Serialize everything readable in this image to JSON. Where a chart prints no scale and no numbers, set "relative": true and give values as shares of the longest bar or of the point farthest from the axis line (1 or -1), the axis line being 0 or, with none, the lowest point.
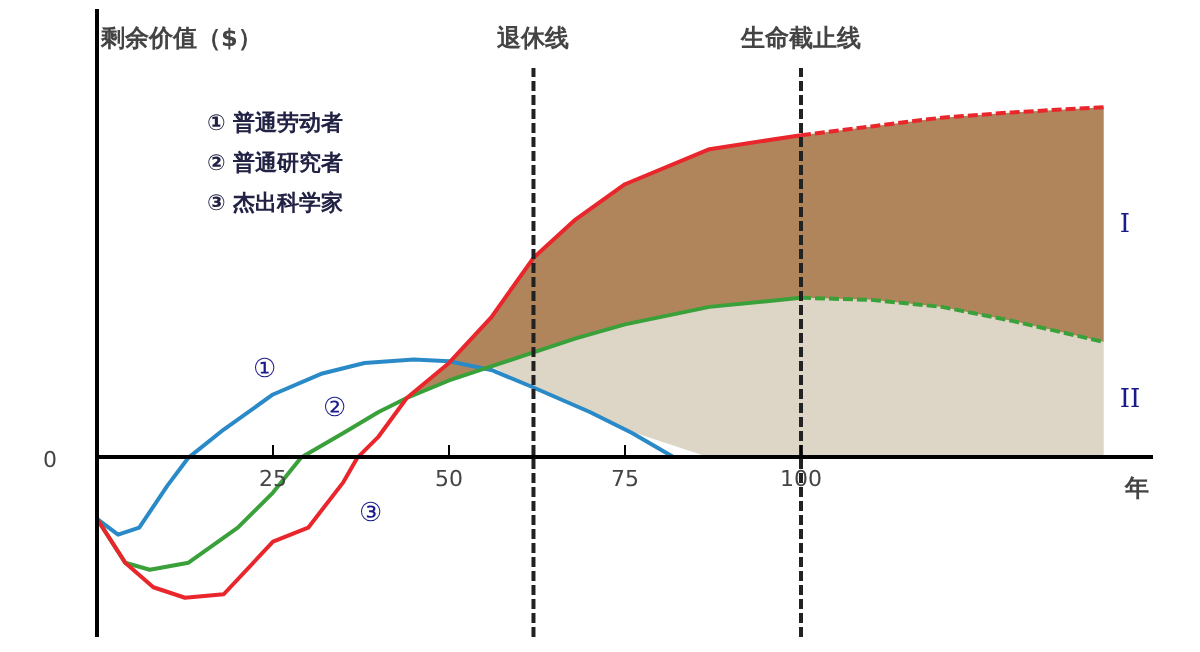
{
  "chart_data": {
    "type": "line",
    "relative": true,
    "ylabel": "剩余价值（$）",
    "xlabel": "年",
    "xlim": [
      0,
      150
    ],
    "xticks": [
      25,
      50,
      75,
      100
    ],
    "grid": false,
    "series": [
      {
        "name": "①",
        "color": "#2a8ac8",
        "x": [
          0,
          3,
          6,
          10,
          13,
          18,
          25,
          32,
          38,
          45,
          50,
          56,
          62,
          70,
          76,
          82
        ],
        "values": [
          -0.175,
          -0.22,
          -0.2,
          -0.08,
          0,
          0.08,
          0.18,
          0.24,
          0.27,
          0.28,
          0.275,
          0.25,
          0.2,
          0.13,
          0.07,
          0
        ]
      },
      {
        "name": "②",
        "color": "#3aa03a",
        "line_style": "solid",
        "x": [
          0,
          4,
          7.5,
          13,
          20,
          25,
          29,
          35,
          40,
          44,
          50,
          56,
          62,
          68,
          75,
          87,
          100
        ],
        "values": [
          -0.175,
          -0.3,
          -0.32,
          -0.3,
          -0.2,
          -0.1,
          0,
          0.07,
          0.13,
          0.17,
          0.22,
          0.26,
          0.3,
          0.34,
          0.38,
          0.43,
          0.456
        ],
        "lower": [
          null,
          null,
          null,
          null,
          null,
          null,
          null,
          null,
          null,
          null,
          null,
          0.26,
          0.2,
          0.15,
          0.08,
          0,
          0
        ],
        "upper": [
          null,
          null,
          null,
          null,
          null,
          null,
          null,
          null,
          null,
          null,
          null,
          0.26,
          0.3,
          0.34,
          0.38,
          0.43,
          0.456
        ]
      },
      {
        "color": "#3aa03a",
        "line_style": "dashed",
        "x": [
          100,
          110,
          120,
          130,
          143
        ],
        "values": [
          0.456,
          0.45,
          0.43,
          0.39,
          0.33
        ],
        "lower": [
          0,
          0,
          0,
          0,
          0
        ],
        "upper": [
          0.456,
          0.45,
          0.43,
          0.39,
          0.33
        ]
      },
      {
        "name": "③",
        "color": "#e8262b",
        "line_style": "solid",
        "x": [
          0,
          4,
          8,
          12.5,
          18,
          25,
          30,
          35,
          37,
          40,
          44,
          50,
          56,
          62,
          68,
          75,
          87,
          100
        ],
        "values": [
          -0.175,
          -0.3,
          -0.37,
          -0.4,
          -0.39,
          -0.24,
          -0.2,
          -0.07,
          0,
          0.06,
          0.17,
          0.27,
          0.4,
          0.57,
          0.68,
          0.78,
          0.88,
          0.92
        ],
        "lower": [
          null,
          null,
          null,
          null,
          null,
          null,
          null,
          null,
          null,
          null,
          0.17,
          0.22,
          0.26,
          0.3,
          0.34,
          0.38,
          0.43,
          0.456
        ],
        "upper": [
          null,
          null,
          null,
          null,
          null,
          null,
          null,
          null,
          null,
          null,
          0.17,
          0.27,
          0.4,
          0.57,
          0.68,
          0.78,
          0.88,
          0.92
        ]
      },
      {
        "color": "#e8262b",
        "line_style": "dashed",
        "x": [
          100,
          110,
          120,
          130,
          143
        ],
        "values": [
          0.92,
          0.945,
          0.97,
          0.985,
          1.0
        ],
        "lower": [
          0.456,
          0.45,
          0.43,
          0.39,
          0.33
        ],
        "upper": [
          0.92,
          0.945,
          0.97,
          0.985,
          1.0
        ]
      }
    ],
    "ref_lines": [
      {
        "axis": "x",
        "value": 62,
        "label": "退休线",
        "line_style": "dashed"
      },
      {
        "axis": "x",
        "value": 100,
        "label": "生命截止线",
        "line_style": "dashed"
      }
    ],
    "annotations": [
      "0",
      "① 普通劳动者",
      "② 普通研究者",
      "③ 杰出科学家",
      "II",
      "I"
    ]
  }
}
